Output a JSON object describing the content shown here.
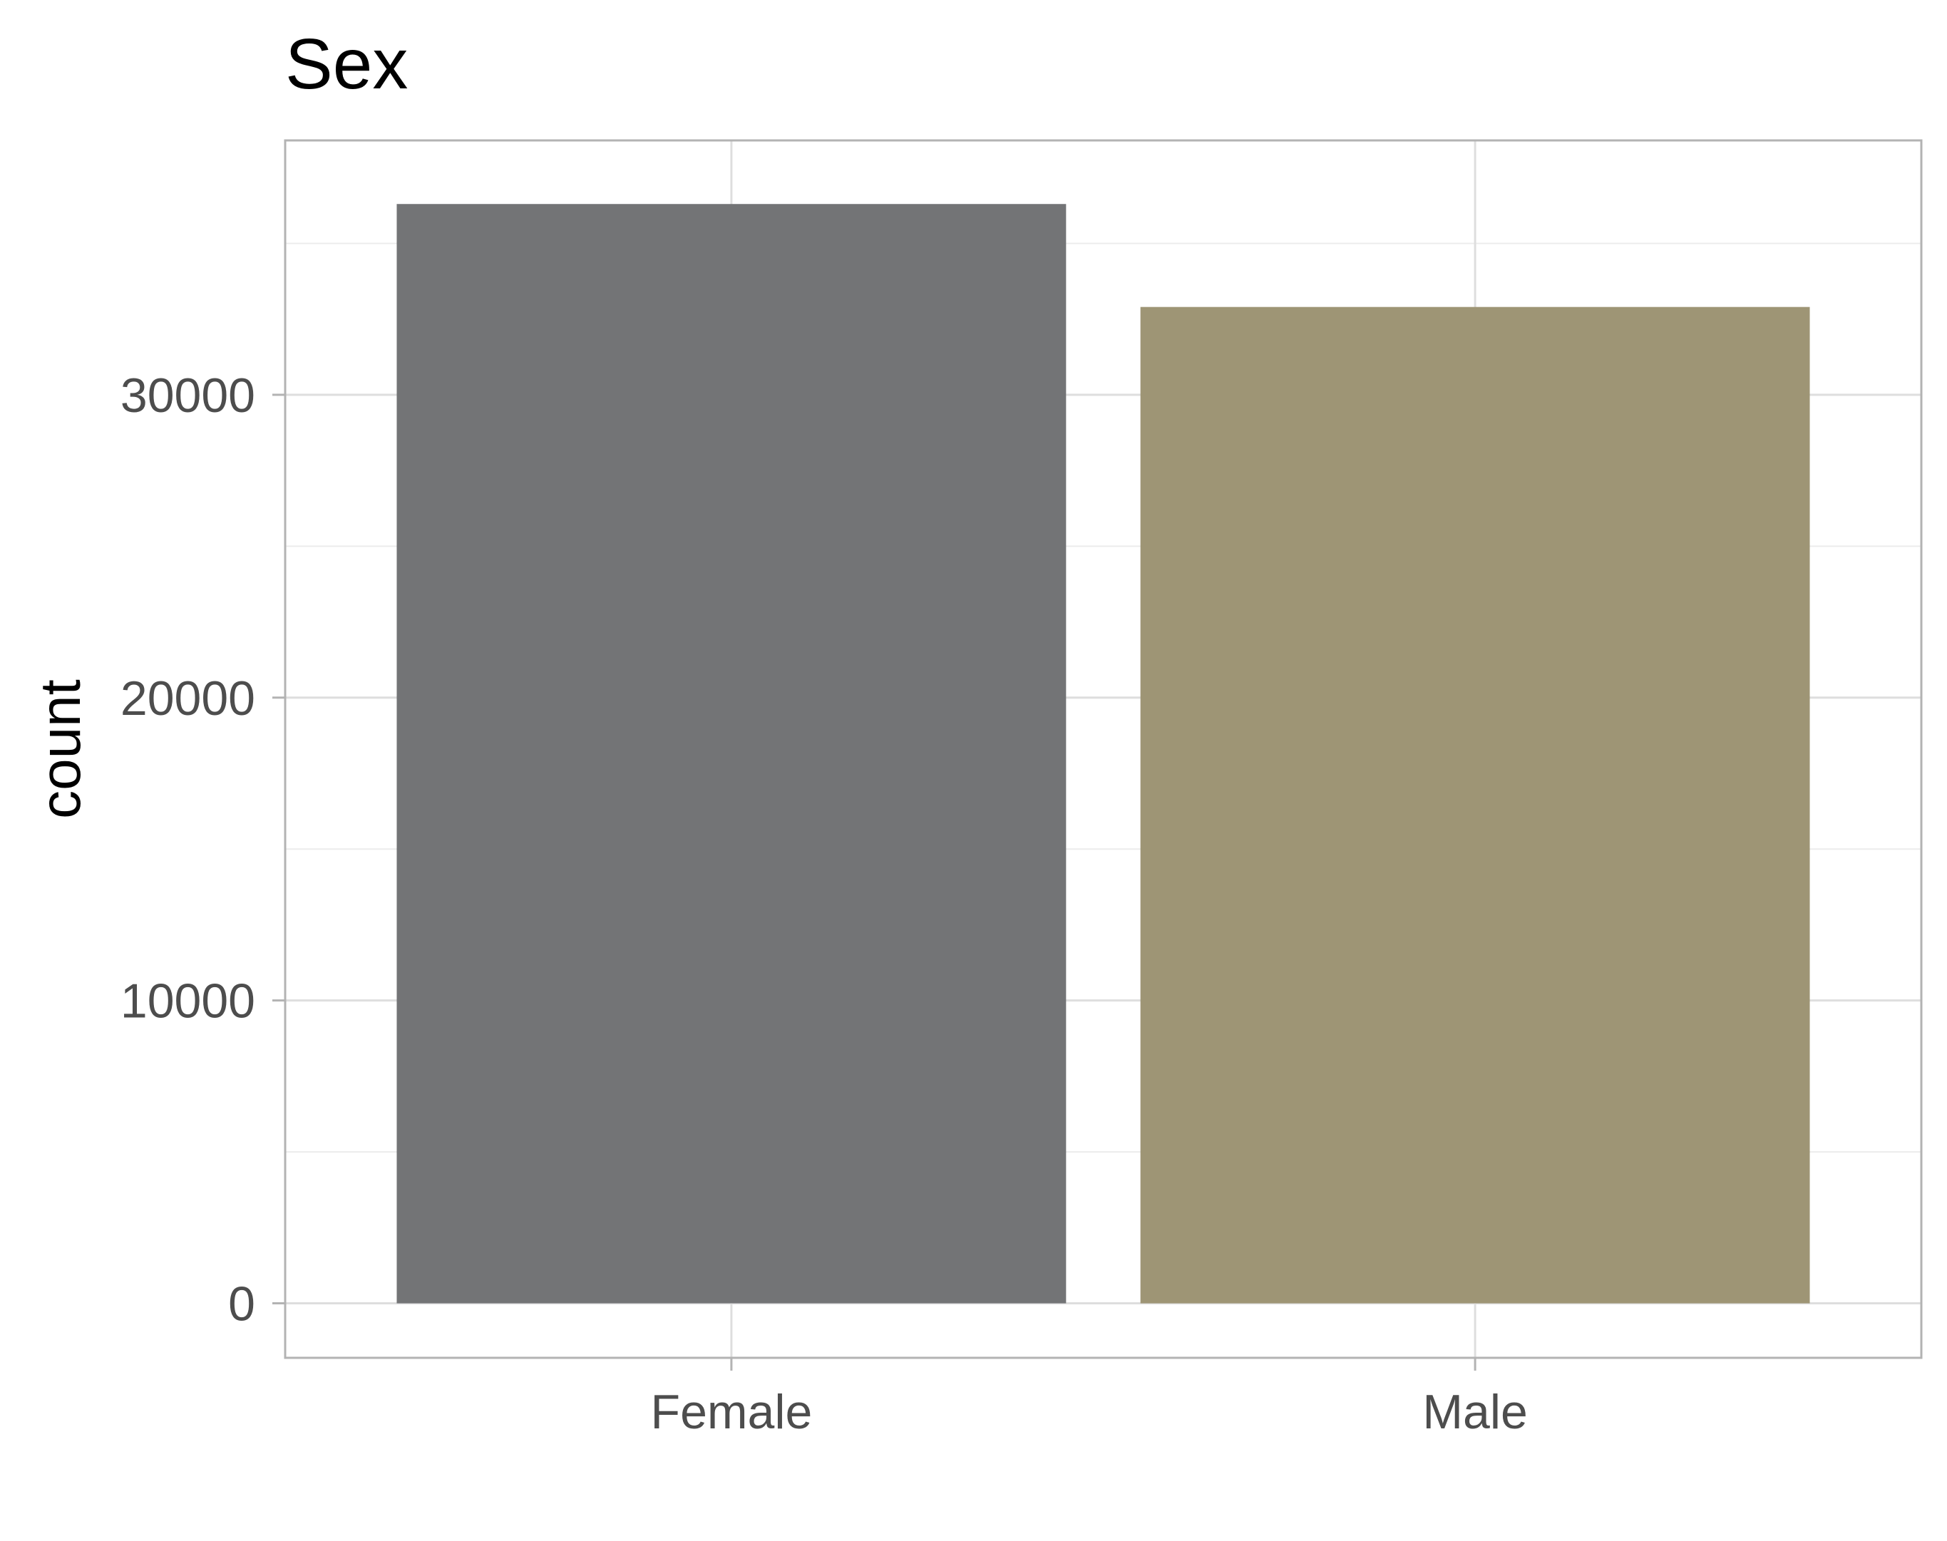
{
  "chart_data": {
    "type": "bar",
    "title": "Sex",
    "xlabel": "",
    "ylabel": "count",
    "categories": [
      "Female",
      "Male"
    ],
    "values": [
      36300,
      32900
    ],
    "colors": [
      "#737476",
      "#9e9575"
    ],
    "ylim": [
      -1800,
      38400
    ],
    "yticks": [
      0,
      10000,
      20000,
      30000
    ],
    "yticks_labels": [
      "0",
      "10000",
      "20000",
      "30000"
    ],
    "grid": true,
    "legend": "none"
  }
}
